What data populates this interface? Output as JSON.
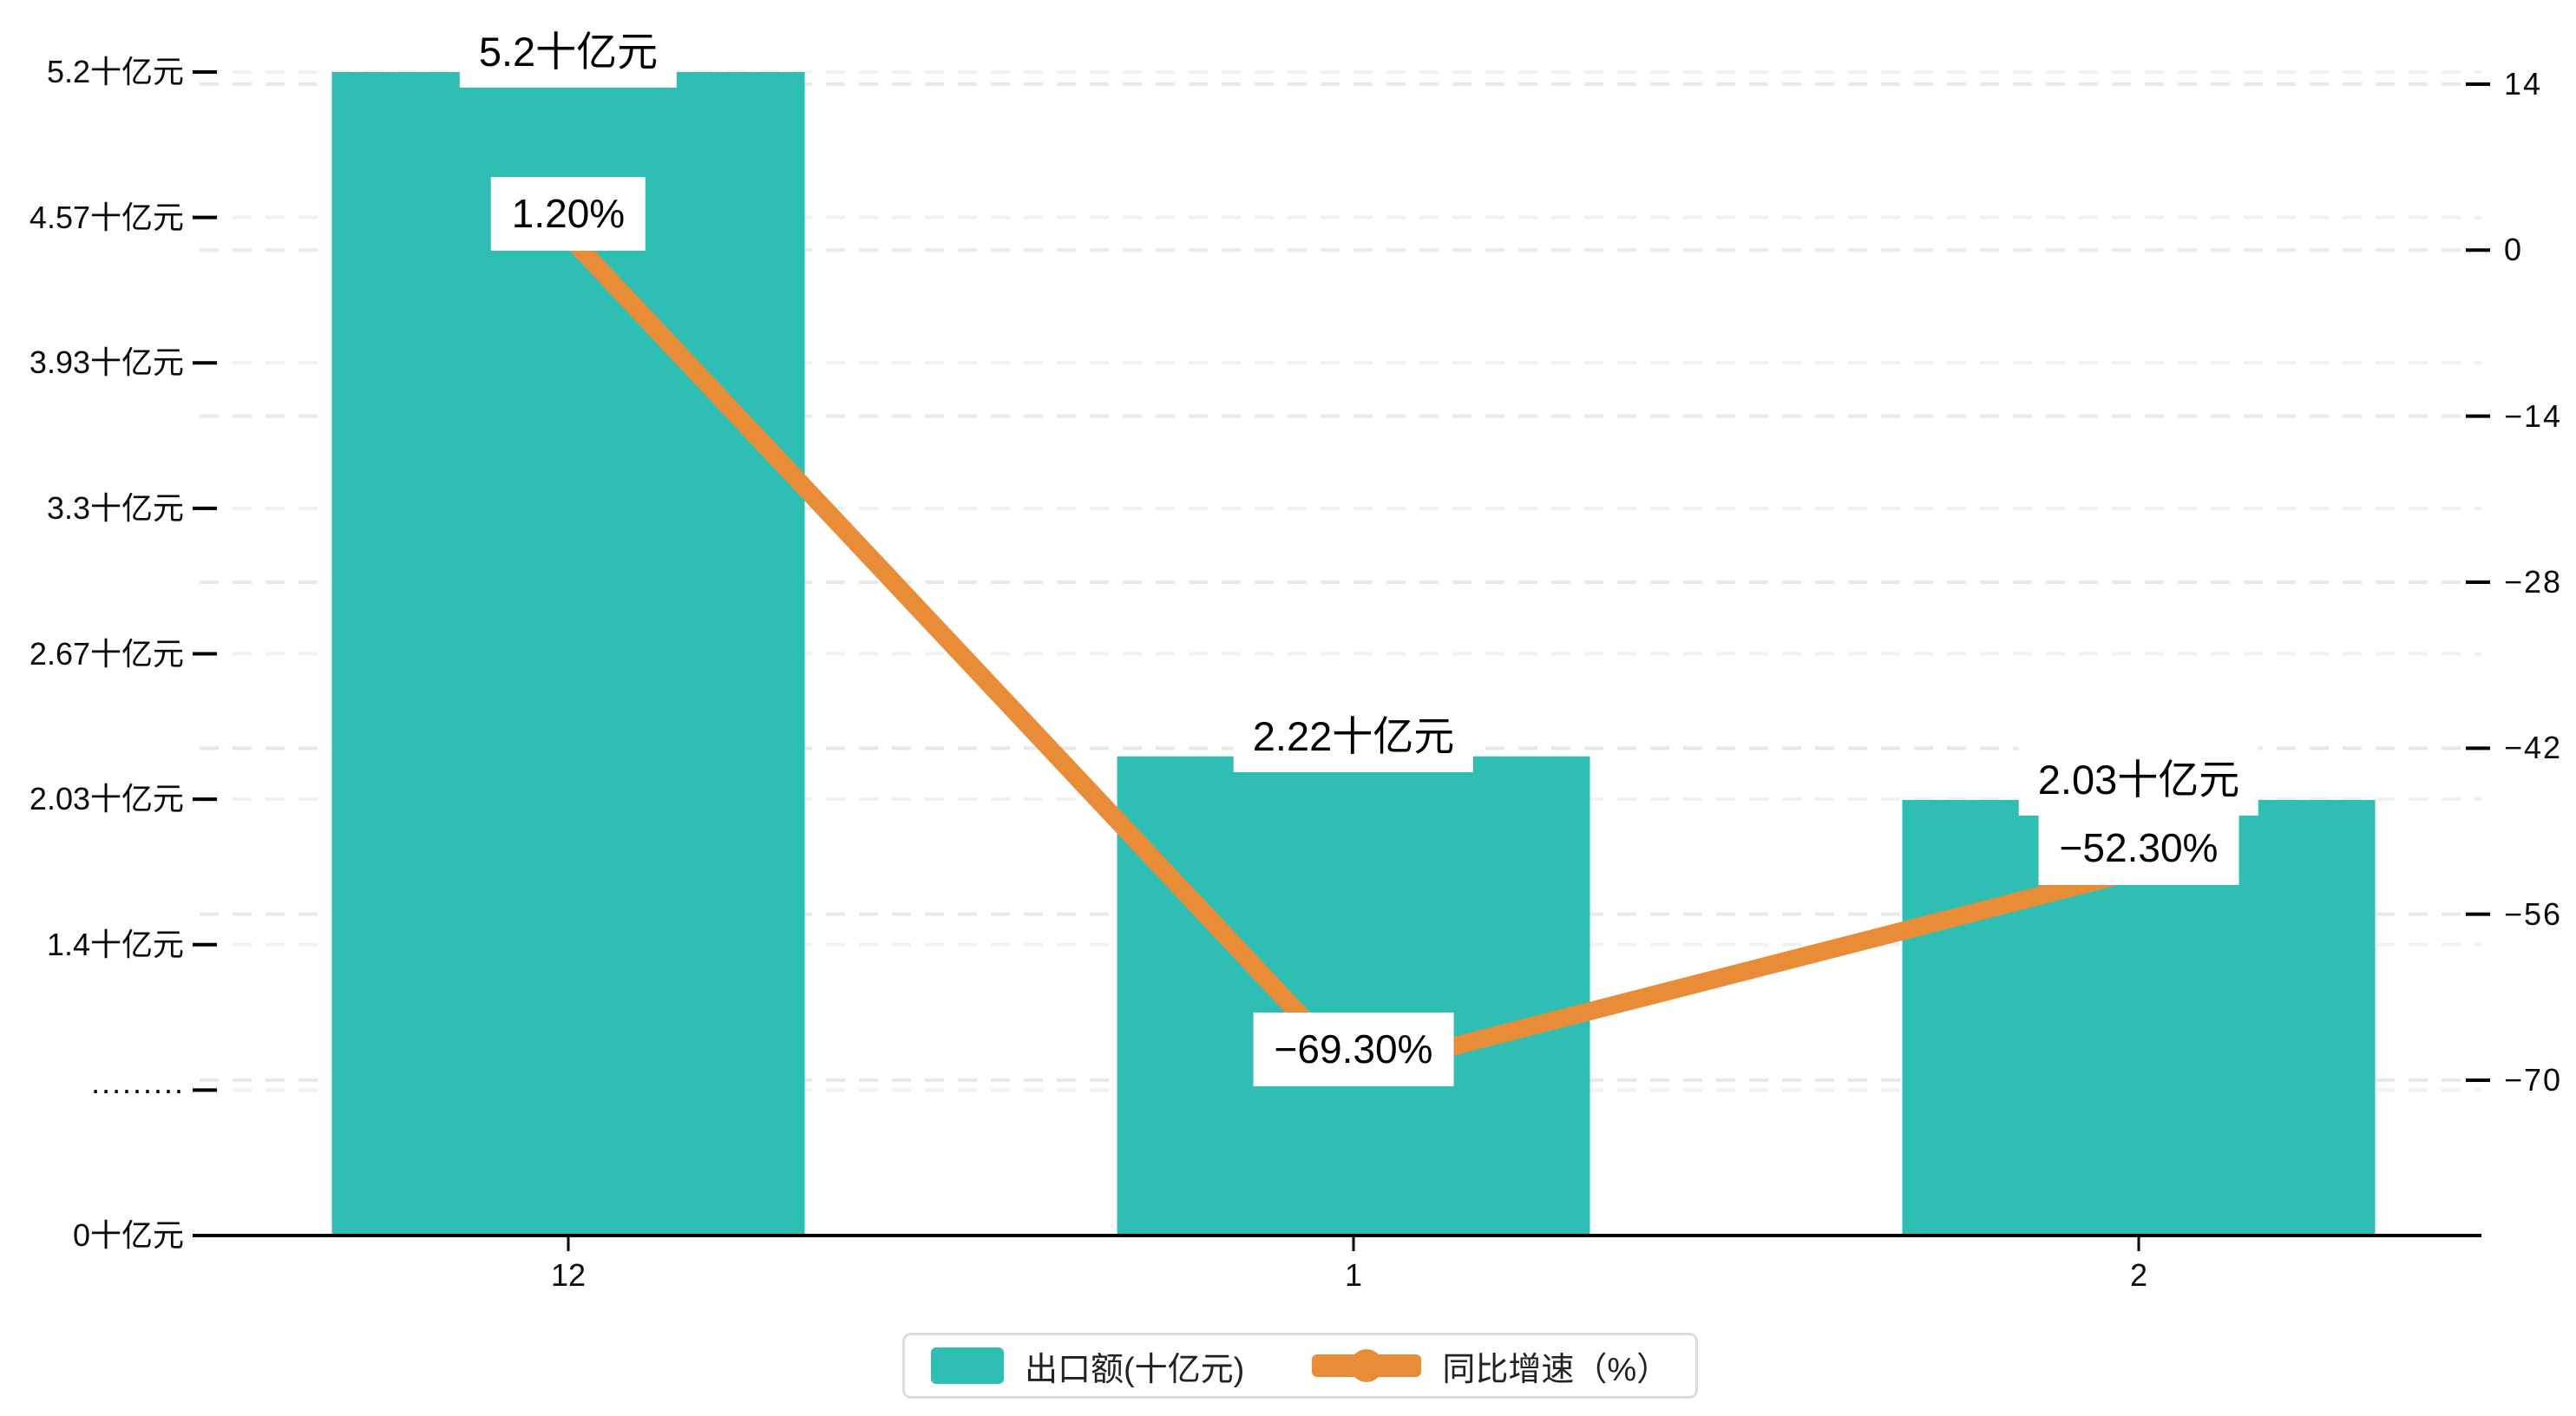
{
  "chart_data": {
    "type": "bar",
    "title": "",
    "categories": [
      "12",
      "1",
      "2"
    ],
    "series": [
      {
        "name": "出口额(十亿元)",
        "type": "bar",
        "values": [
          5.2,
          2.22,
          2.03
        ],
        "labels": [
          "5.2十亿元",
          "2.22十亿元",
          "2.03十亿元"
        ],
        "color": "#2FBEB3",
        "axis": "left"
      },
      {
        "name": "同比增速（%）",
        "type": "line",
        "values": [
          1.2,
          -69.3,
          -52.3
        ],
        "labels": [
          "1.20%",
          "−69.30%",
          "−52.30%"
        ],
        "color": "#E98C38",
        "axis": "right"
      }
    ],
    "left_axis": {
      "tick_labels": [
        "5.2十亿元",
        "4.57十亿元",
        "3.93十亿元",
        "3.3十亿元",
        "2.67十亿元",
        "2.03十亿元",
        "1.4十亿元",
        "·········",
        "0十亿元"
      ],
      "min": 0.13333,
      "max": 5.2
    },
    "right_axis": {
      "tick_labels": [
        "14",
        "0",
        "−14",
        "−28",
        "−42",
        "−56",
        "−70"
      ],
      "tick_values": [
        14,
        0,
        -14,
        -28,
        -42,
        -56,
        -70
      ],
      "min": -70,
      "max": 14
    },
    "legend_position": "bottom",
    "grid": "dashed",
    "colors": {
      "bar": "#2FBEB3",
      "line": "#E98C38",
      "grid_left": "#F1F1F1",
      "grid_right": "#E9E9E9",
      "axis": "#000000",
      "text": "#0a0a0a",
      "legend_border": "#dcdcdc",
      "label_background": "#ffffff"
    }
  }
}
